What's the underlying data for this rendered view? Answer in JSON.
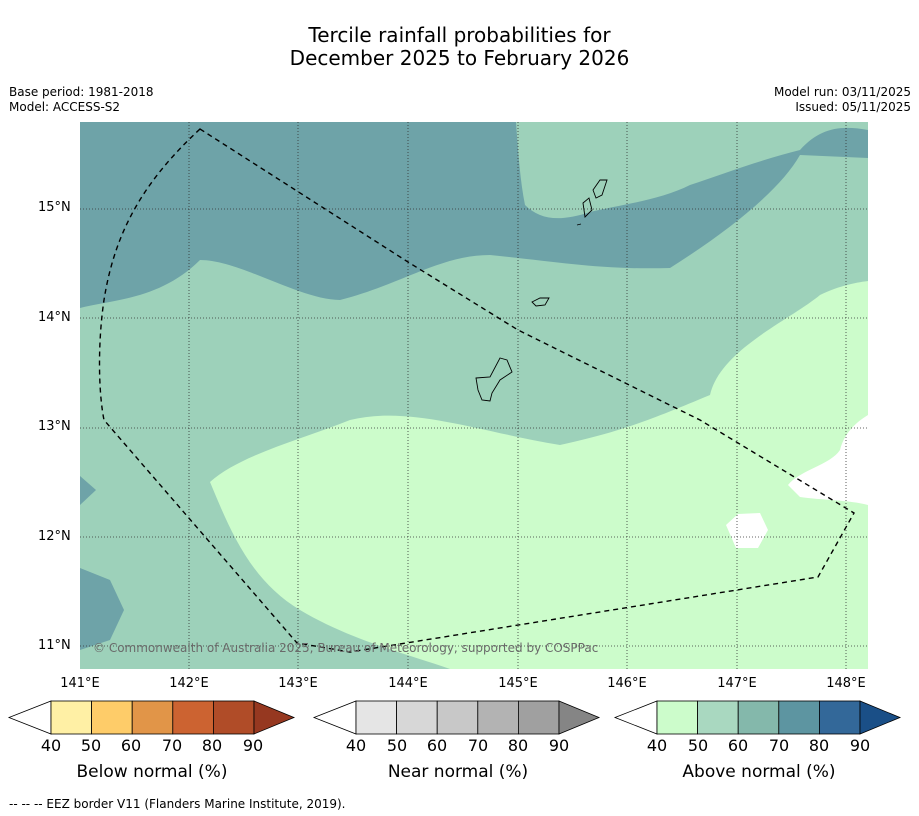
{
  "title": {
    "line1": "Tercile rainfall probabilities for",
    "line2": "December 2025 to February 2026"
  },
  "meta": {
    "base_period": "Base period: 1981-2018",
    "model": "Model: ACCESS-S2",
    "model_run": "Model run: 03/11/2025",
    "issued": "Issued: 05/11/2025"
  },
  "map": {
    "latitude_labels": [
      "15°N",
      "14°N",
      "13°N",
      "12°N",
      "11°N"
    ],
    "longitude_labels": [
      "141°E",
      "142°E",
      "143°E",
      "144°E",
      "145°E",
      "146°E",
      "147°E",
      "148°E"
    ],
    "copyright": "© Commonwealth of Australia 2025, Bureau of Meteorology, supported by COSPPac",
    "colors": {
      "above_60_70": "#6ea3a8",
      "above_50_60": "#9dd1ba",
      "above_40_50": "#ccfccb",
      "no_dominant": "#ffffff"
    }
  },
  "colorbars": [
    {
      "label": "Below normal (%)",
      "ticks": [
        "40",
        "50",
        "60",
        "70",
        "80",
        "90"
      ],
      "colors": [
        "#fff0a5",
        "#fecc69",
        "#e19548",
        "#cc6331",
        "#b04c28",
        "#963820"
      ]
    },
    {
      "label": "Near normal (%)",
      "ticks": [
        "40",
        "50",
        "60",
        "70",
        "80",
        "90"
      ],
      "colors": [
        "#e5e5e5",
        "#d7d7d7",
        "#c8c8c8",
        "#b3b3b3",
        "#a0a0a0",
        "#858585"
      ]
    },
    {
      "label": "Above normal (%)",
      "ticks": [
        "40",
        "50",
        "60",
        "70",
        "80",
        "90"
      ],
      "colors": [
        "#ccfccb",
        "#a9d8c0",
        "#84b8ab",
        "#5d95a1",
        "#336899",
        "#1a4f87"
      ]
    }
  ],
  "footer": "-- -- -- EEZ border V11 (Flanders Marine Institute, 2019)."
}
